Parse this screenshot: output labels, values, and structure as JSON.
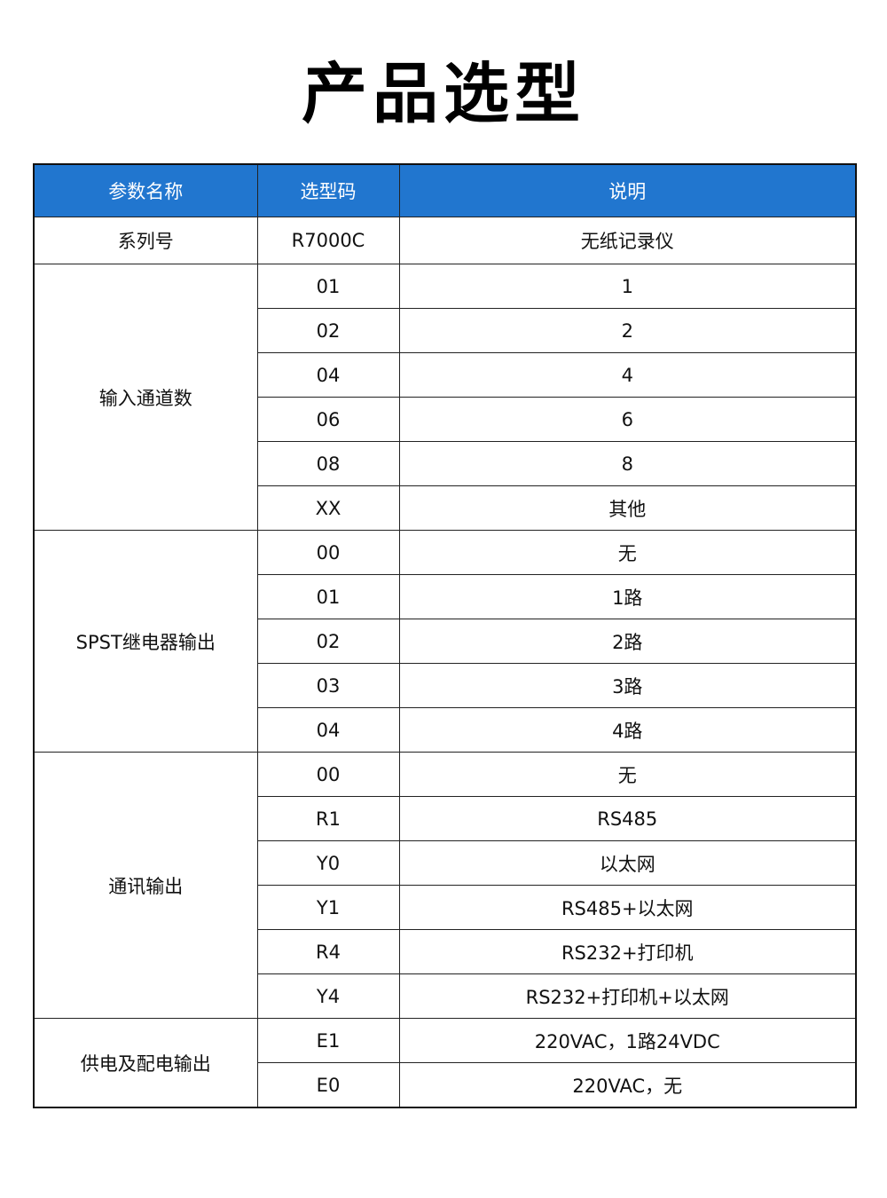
{
  "title": "产品选型",
  "colors": {
    "header_bg": "#2176cf",
    "header_text": "#ffffff"
  },
  "table": {
    "headers": [
      "参数名称",
      "选型码",
      "说明"
    ],
    "groups": [
      {
        "name": "系列号",
        "rows": [
          [
            "R7000C",
            "无纸记录仪"
          ]
        ]
      },
      {
        "name": "输入通道数",
        "rows": [
          [
            "01",
            "1"
          ],
          [
            "02",
            "2"
          ],
          [
            "04",
            "4"
          ],
          [
            "06",
            "6"
          ],
          [
            "08",
            "8"
          ],
          [
            "XX",
            "其他"
          ]
        ]
      },
      {
        "name": "SPST继电器输出",
        "rows": [
          [
            "00",
            "无"
          ],
          [
            "01",
            "1路"
          ],
          [
            "02",
            "2路"
          ],
          [
            "03",
            "3路"
          ],
          [
            "04",
            "4路"
          ]
        ]
      },
      {
        "name": "通讯输出",
        "rows": [
          [
            "00",
            "无"
          ],
          [
            "R1",
            "RS485"
          ],
          [
            "Y0",
            "以太网"
          ],
          [
            "Y1",
            "RS485+以太网"
          ],
          [
            "R4",
            "RS232+打印机"
          ],
          [
            "Y4",
            "RS232+打印机+以太网"
          ]
        ]
      },
      {
        "name": "供电及配电输出",
        "rows": [
          [
            "E1",
            "220VAC，1路24VDC"
          ],
          [
            "E0",
            "220VAC，无"
          ]
        ]
      }
    ]
  }
}
